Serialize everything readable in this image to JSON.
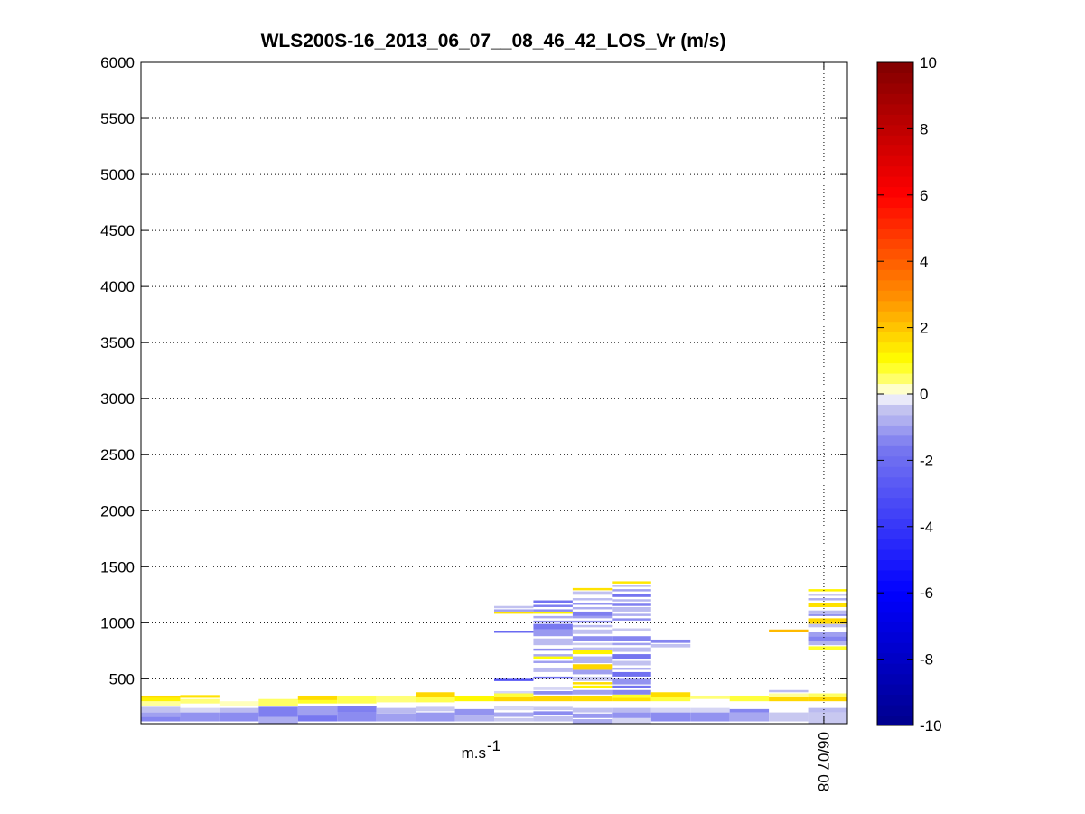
{
  "chart_data": {
    "type": "heatmap",
    "title": "WLS200S-16_2013_06_07__08_46_42_LOS_Vr (m/s)",
    "xlabel": "m.s",
    "xlabel_sup": "-1",
    "ylabel": "",
    "ylim": [
      100,
      6000
    ],
    "y_ticks": [
      500,
      1000,
      1500,
      2000,
      2500,
      3000,
      3500,
      4000,
      4500,
      5000,
      5500,
      6000
    ],
    "x_ticks": [
      {
        "label": "06/07 08",
        "col": 17.4
      }
    ],
    "grid": true,
    "colorbar": {
      "range": [
        -10,
        10
      ],
      "ticks": [
        -10,
        -8,
        -6,
        -4,
        -2,
        0,
        2,
        4,
        6,
        8,
        10
      ]
    },
    "columns": 18,
    "cells": [
      {
        "col": 0,
        "y0": 120,
        "y1": 160,
        "v": -1.4
      },
      {
        "col": 0,
        "y0": 160,
        "y1": 200,
        "v": -1.0
      },
      {
        "col": 0,
        "y0": 200,
        "y1": 250,
        "v": -0.5
      },
      {
        "col": 0,
        "y0": 260,
        "y1": 300,
        "v": 0.3
      },
      {
        "col": 0,
        "y0": 300,
        "y1": 330,
        "v": 1.2
      },
      {
        "col": 0,
        "y0": 330,
        "y1": 350,
        "v": 1.6
      },
      {
        "col": 1,
        "y0": 120,
        "y1": 200,
        "v": -1.2
      },
      {
        "col": 1,
        "y0": 200,
        "y1": 240,
        "v": -0.3
      },
      {
        "col": 1,
        "y0": 280,
        "y1": 320,
        "v": 0.4
      },
      {
        "col": 1,
        "y0": 330,
        "y1": 355,
        "v": 1.5
      },
      {
        "col": 2,
        "y0": 120,
        "y1": 200,
        "v": -1.3
      },
      {
        "col": 2,
        "y0": 200,
        "y1": 240,
        "v": -0.6
      },
      {
        "col": 2,
        "y0": 260,
        "y1": 300,
        "v": 0.2
      },
      {
        "col": 3,
        "y0": 100,
        "y1": 160,
        "v": -0.8
      },
      {
        "col": 3,
        "y0": 160,
        "y1": 250,
        "v": -1.5
      },
      {
        "col": 3,
        "y0": 260,
        "y1": 320,
        "v": 0.5
      },
      {
        "col": 4,
        "y0": 120,
        "y1": 180,
        "v": -1.6
      },
      {
        "col": 4,
        "y0": 180,
        "y1": 260,
        "v": -1.0
      },
      {
        "col": 4,
        "y0": 280,
        "y1": 310,
        "v": 0.8
      },
      {
        "col": 4,
        "y0": 310,
        "y1": 350,
        "v": 1.6
      },
      {
        "col": 5,
        "y0": 120,
        "y1": 200,
        "v": -1.3
      },
      {
        "col": 5,
        "y0": 200,
        "y1": 260,
        "v": -1.5
      },
      {
        "col": 5,
        "y0": 280,
        "y1": 350,
        "v": 0.6
      },
      {
        "col": 6,
        "y0": 120,
        "y1": 190,
        "v": -1.0
      },
      {
        "col": 6,
        "y0": 190,
        "y1": 240,
        "v": -0.6
      },
      {
        "col": 6,
        "y0": 290,
        "y1": 350,
        "v": 0.4
      },
      {
        "col": 7,
        "y0": 120,
        "y1": 200,
        "v": -1.1
      },
      {
        "col": 7,
        "y0": 210,
        "y1": 250,
        "v": -0.4
      },
      {
        "col": 7,
        "y0": 290,
        "y1": 340,
        "v": 0.6
      },
      {
        "col": 7,
        "y0": 340,
        "y1": 380,
        "v": 1.7
      },
      {
        "col": 8,
        "y0": 120,
        "y1": 180,
        "v": -0.7
      },
      {
        "col": 8,
        "y0": 180,
        "y1": 230,
        "v": -1.2
      },
      {
        "col": 8,
        "y0": 300,
        "y1": 350,
        "v": 1.1
      },
      {
        "col": 9,
        "y0": 120,
        "y1": 150,
        "v": -0.4
      },
      {
        "col": 9,
        "y0": 160,
        "y1": 200,
        "v": -0.9
      },
      {
        "col": 9,
        "y0": 220,
        "y1": 260,
        "v": -0.3
      },
      {
        "col": 9,
        "y0": 300,
        "y1": 340,
        "v": 1.7
      },
      {
        "col": 9,
        "y0": 340,
        "y1": 370,
        "v": 0.7
      },
      {
        "col": 9,
        "y0": 370,
        "y1": 390,
        "v": -0.3
      },
      {
        "col": 9,
        "y0": 480,
        "y1": 500,
        "v": -3.0
      },
      {
        "col": 9,
        "y0": 910,
        "y1": 930,
        "v": -2.2
      },
      {
        "col": 9,
        "y0": 1080,
        "y1": 1100,
        "v": 1.5
      },
      {
        "col": 9,
        "y0": 1100,
        "y1": 1120,
        "v": -1.0
      },
      {
        "col": 9,
        "y0": 1130,
        "y1": 1150,
        "v": -0.5
      },
      {
        "col": 10,
        "y0": 120,
        "y1": 170,
        "v": -0.5
      },
      {
        "col": 10,
        "y0": 180,
        "y1": 210,
        "v": -1.3
      },
      {
        "col": 10,
        "y0": 220,
        "y1": 250,
        "v": -0.4
      },
      {
        "col": 10,
        "y0": 300,
        "y1": 350,
        "v": 1.7
      },
      {
        "col": 10,
        "y0": 360,
        "y1": 390,
        "v": -1.3
      },
      {
        "col": 10,
        "y0": 400,
        "y1": 430,
        "v": -0.3
      },
      {
        "col": 10,
        "y0": 500,
        "y1": 520,
        "v": -1.8
      },
      {
        "col": 10,
        "y0": 560,
        "y1": 600,
        "v": -0.6
      },
      {
        "col": 10,
        "y0": 640,
        "y1": 660,
        "v": -1.0
      },
      {
        "col": 10,
        "y0": 680,
        "y1": 700,
        "v": 1.0
      },
      {
        "col": 10,
        "y0": 700,
        "y1": 720,
        "v": -0.8
      },
      {
        "col": 10,
        "y0": 750,
        "y1": 770,
        "v": -1.3
      },
      {
        "col": 10,
        "y0": 800,
        "y1": 860,
        "v": -0.6
      },
      {
        "col": 10,
        "y0": 880,
        "y1": 940,
        "v": -1.1
      },
      {
        "col": 10,
        "y0": 940,
        "y1": 990,
        "v": -1.6
      },
      {
        "col": 10,
        "y0": 1000,
        "y1": 1020,
        "v": -1.2
      },
      {
        "col": 10,
        "y0": 1040,
        "y1": 1060,
        "v": -0.8
      },
      {
        "col": 10,
        "y0": 1080,
        "y1": 1100,
        "v": 1.2
      },
      {
        "col": 10,
        "y0": 1100,
        "y1": 1120,
        "v": -1.3
      },
      {
        "col": 10,
        "y0": 1140,
        "y1": 1160,
        "v": -1.5
      },
      {
        "col": 10,
        "y0": 1180,
        "y1": 1200,
        "v": -1.8
      },
      {
        "col": 11,
        "y0": 100,
        "y1": 140,
        "v": -0.8
      },
      {
        "col": 11,
        "y0": 150,
        "y1": 190,
        "v": -1.1
      },
      {
        "col": 11,
        "y0": 200,
        "y1": 240,
        "v": -0.5
      },
      {
        "col": 11,
        "y0": 300,
        "y1": 350,
        "v": 1.6
      },
      {
        "col": 11,
        "y0": 360,
        "y1": 400,
        "v": -1.0
      },
      {
        "col": 11,
        "y0": 420,
        "y1": 440,
        "v": 1.2
      },
      {
        "col": 11,
        "y0": 450,
        "y1": 470,
        "v": 1.6
      },
      {
        "col": 11,
        "y0": 480,
        "y1": 520,
        "v": -0.4
      },
      {
        "col": 11,
        "y0": 540,
        "y1": 580,
        "v": -1.0
      },
      {
        "col": 11,
        "y0": 580,
        "y1": 630,
        "v": 1.7
      },
      {
        "col": 11,
        "y0": 640,
        "y1": 700,
        "v": -0.7
      },
      {
        "col": 11,
        "y0": 720,
        "y1": 760,
        "v": 1.2
      },
      {
        "col": 11,
        "y0": 760,
        "y1": 780,
        "v": -0.6
      },
      {
        "col": 11,
        "y0": 800,
        "y1": 820,
        "v": -0.4
      },
      {
        "col": 11,
        "y0": 840,
        "y1": 880,
        "v": -1.3
      },
      {
        "col": 11,
        "y0": 900,
        "y1": 940,
        "v": -0.5
      },
      {
        "col": 11,
        "y0": 960,
        "y1": 980,
        "v": -0.6
      },
      {
        "col": 11,
        "y0": 1000,
        "y1": 1020,
        "v": -1.2
      },
      {
        "col": 11,
        "y0": 1040,
        "y1": 1060,
        "v": -1.0
      },
      {
        "col": 11,
        "y0": 1060,
        "y1": 1100,
        "v": -1.5
      },
      {
        "col": 11,
        "y0": 1120,
        "y1": 1140,
        "v": -0.8
      },
      {
        "col": 11,
        "y0": 1160,
        "y1": 1180,
        "v": -1.2
      },
      {
        "col": 11,
        "y0": 1200,
        "y1": 1220,
        "v": -0.6
      },
      {
        "col": 11,
        "y0": 1250,
        "y1": 1280,
        "v": -0.5
      },
      {
        "col": 11,
        "y0": 1290,
        "y1": 1310,
        "v": 1.5
      },
      {
        "col": 12,
        "y0": 100,
        "y1": 150,
        "v": -0.3
      },
      {
        "col": 12,
        "y0": 150,
        "y1": 200,
        "v": -1.2
      },
      {
        "col": 12,
        "y0": 200,
        "y1": 240,
        "v": -0.6
      },
      {
        "col": 12,
        "y0": 300,
        "y1": 330,
        "v": 1.5
      },
      {
        "col": 12,
        "y0": 330,
        "y1": 360,
        "v": 0.8
      },
      {
        "col": 12,
        "y0": 360,
        "y1": 400,
        "v": -1.4
      },
      {
        "col": 12,
        "y0": 420,
        "y1": 440,
        "v": -1.8
      },
      {
        "col": 12,
        "y0": 450,
        "y1": 500,
        "v": -1.2
      },
      {
        "col": 12,
        "y0": 520,
        "y1": 560,
        "v": -1.9
      },
      {
        "col": 12,
        "y0": 580,
        "y1": 600,
        "v": -0.8
      },
      {
        "col": 12,
        "y0": 620,
        "y1": 660,
        "v": -0.5
      },
      {
        "col": 12,
        "y0": 680,
        "y1": 720,
        "v": -1.7
      },
      {
        "col": 12,
        "y0": 740,
        "y1": 780,
        "v": -0.6
      },
      {
        "col": 12,
        "y0": 800,
        "y1": 820,
        "v": -1.0
      },
      {
        "col": 12,
        "y0": 840,
        "y1": 880,
        "v": -1.4
      },
      {
        "col": 12,
        "y0": 930,
        "y1": 950,
        "v": -0.4
      },
      {
        "col": 12,
        "y0": 1020,
        "y1": 1040,
        "v": -1.3
      },
      {
        "col": 12,
        "y0": 1060,
        "y1": 1080,
        "v": -0.8
      },
      {
        "col": 12,
        "y0": 1100,
        "y1": 1140,
        "v": -0.6
      },
      {
        "col": 12,
        "y0": 1150,
        "y1": 1170,
        "v": -1.5
      },
      {
        "col": 12,
        "y0": 1190,
        "y1": 1210,
        "v": -0.7
      },
      {
        "col": 12,
        "y0": 1230,
        "y1": 1260,
        "v": -1.7
      },
      {
        "col": 12,
        "y0": 1280,
        "y1": 1300,
        "v": -1.0
      },
      {
        "col": 12,
        "y0": 1320,
        "y1": 1340,
        "v": -0.5
      },
      {
        "col": 12,
        "y0": 1350,
        "y1": 1370,
        "v": 1.4
      },
      {
        "col": 13,
        "y0": 120,
        "y1": 200,
        "v": -1.3
      },
      {
        "col": 13,
        "y0": 200,
        "y1": 240,
        "v": -0.3
      },
      {
        "col": 13,
        "y0": 300,
        "y1": 340,
        "v": 0.7
      },
      {
        "col": 13,
        "y0": 340,
        "y1": 380,
        "v": 1.6
      },
      {
        "col": 13,
        "y0": 780,
        "y1": 810,
        "v": -0.5
      },
      {
        "col": 13,
        "y0": 820,
        "y1": 850,
        "v": -1.4
      },
      {
        "col": 14,
        "y0": 120,
        "y1": 200,
        "v": -1.2
      },
      {
        "col": 14,
        "y0": 200,
        "y1": 240,
        "v": -0.3
      },
      {
        "col": 14,
        "y0": 320,
        "y1": 350,
        "v": 0.4
      },
      {
        "col": 15,
        "y0": 120,
        "y1": 200,
        "v": -0.9
      },
      {
        "col": 15,
        "y0": 200,
        "y1": 230,
        "v": -1.4
      },
      {
        "col": 15,
        "y0": 300,
        "y1": 350,
        "v": 0.7
      },
      {
        "col": 16,
        "y0": 120,
        "y1": 200,
        "v": -0.4
      },
      {
        "col": 16,
        "y0": 300,
        "y1": 340,
        "v": 1.7
      },
      {
        "col": 16,
        "y0": 340,
        "y1": 370,
        "v": 0.3
      },
      {
        "col": 16,
        "y0": 380,
        "y1": 400,
        "v": -0.6
      },
      {
        "col": 16,
        "y0": 920,
        "y1": 940,
        "v": 2.2
      },
      {
        "col": 17,
        "y0": 100,
        "y1": 200,
        "v": -0.4
      },
      {
        "col": 17,
        "y0": 200,
        "y1": 240,
        "v": -0.6
      },
      {
        "col": 17,
        "y0": 300,
        "y1": 340,
        "v": 1.7
      },
      {
        "col": 17,
        "y0": 340,
        "y1": 370,
        "v": 0.5
      },
      {
        "col": 17,
        "y0": 760,
        "y1": 790,
        "v": 0.8
      },
      {
        "col": 17,
        "y0": 800,
        "y1": 840,
        "v": -0.7
      },
      {
        "col": 17,
        "y0": 840,
        "y1": 880,
        "v": -1.4
      },
      {
        "col": 17,
        "y0": 880,
        "y1": 920,
        "v": -1.0
      },
      {
        "col": 17,
        "y0": 960,
        "y1": 990,
        "v": -0.5
      },
      {
        "col": 17,
        "y0": 990,
        "y1": 1040,
        "v": 1.7
      },
      {
        "col": 17,
        "y0": 1060,
        "y1": 1080,
        "v": -1.2
      },
      {
        "col": 17,
        "y0": 1090,
        "y1": 1110,
        "v": -0.6
      },
      {
        "col": 17,
        "y0": 1140,
        "y1": 1180,
        "v": 1.5
      },
      {
        "col": 17,
        "y0": 1200,
        "y1": 1220,
        "v": -0.8
      },
      {
        "col": 17,
        "y0": 1240,
        "y1": 1260,
        "v": -0.4
      },
      {
        "col": 17,
        "y0": 1280,
        "y1": 1300,
        "v": 1.2
      }
    ]
  }
}
